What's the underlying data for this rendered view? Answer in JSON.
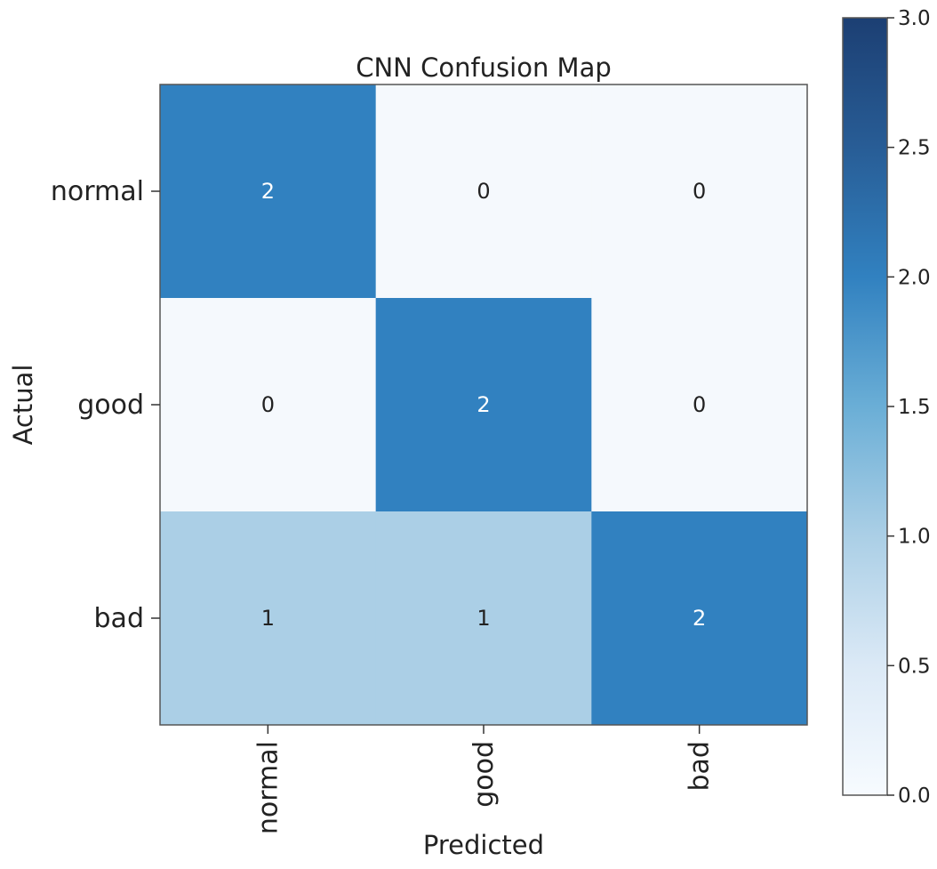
{
  "chart_data": {
    "type": "heatmap",
    "title": "CNN Confusion Map",
    "xlabel": "Predicted",
    "ylabel": "Actual",
    "x_categories": [
      "normal",
      "good",
      "bad"
    ],
    "y_categories": [
      "normal",
      "good",
      "bad"
    ],
    "values": [
      [
        2,
        0,
        0
      ],
      [
        0,
        2,
        0
      ],
      [
        1,
        1,
        2
      ]
    ],
    "colormap": "Blues",
    "colorbar": {
      "range": [
        0.0,
        3.0
      ],
      "ticks": [
        "0.0",
        "0.5",
        "1.0",
        "1.5",
        "2.0",
        "2.5",
        "3.0"
      ]
    },
    "colors": {
      "value_0": "#f5f9fd",
      "value_1": "#abcfe6",
      "value_2": "#3181c0",
      "value_3": "#1c3f73",
      "text_dark": "#222222",
      "text_light": "#ffffff"
    }
  }
}
